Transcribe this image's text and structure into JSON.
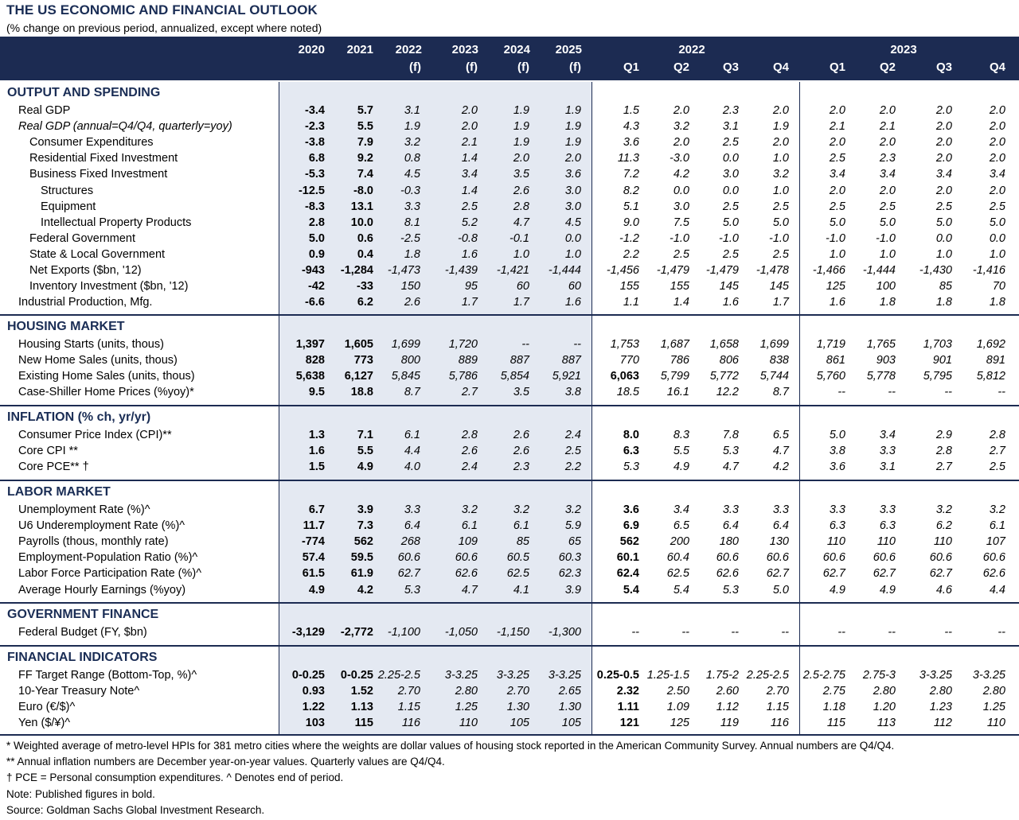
{
  "title": "THE US ECONOMIC AND FINANCIAL OUTLOOK",
  "subtitle": "(% change on previous period, annualized, except where noted)",
  "header": {
    "annual": [
      {
        "top": "2020",
        "bottom": ""
      },
      {
        "top": "2021",
        "bottom": ""
      },
      {
        "top": "2022",
        "bottom": "(f)"
      },
      {
        "top": "2023",
        "bottom": "(f)"
      },
      {
        "top": "2024",
        "bottom": "(f)"
      },
      {
        "top": "2025",
        "bottom": "(f)"
      }
    ],
    "year_groups": [
      "2022",
      "2023"
    ],
    "quarters": [
      "Q1",
      "Q2",
      "Q3",
      "Q4",
      "Q1",
      "Q2",
      "Q3",
      "Q4"
    ]
  },
  "sections": [
    {
      "name": "OUTPUT AND SPENDING",
      "rows": [
        {
          "label": "Real GDP",
          "indent": 1,
          "values": [
            "-3.4",
            "5.7",
            "3.1",
            "2.0",
            "1.9",
            "1.9",
            "1.5",
            "2.0",
            "2.3",
            "2.0",
            "2.0",
            "2.0",
            "2.0",
            "2.0"
          ],
          "bold": 2
        },
        {
          "label": "Real GDP (annual=Q4/Q4, quarterly=yoy)",
          "indent": 1,
          "italic": true,
          "values": [
            "-2.3",
            "5.5",
            "1.9",
            "2.0",
            "1.9",
            "1.9",
            "4.3",
            "3.2",
            "3.1",
            "1.9",
            "2.1",
            "2.1",
            "2.0",
            "2.0"
          ],
          "bold": 2
        },
        {
          "label": "Consumer Expenditures",
          "indent": 2,
          "values": [
            "-3.8",
            "7.9",
            "3.2",
            "2.1",
            "1.9",
            "1.9",
            "3.6",
            "2.0",
            "2.5",
            "2.0",
            "2.0",
            "2.0",
            "2.0",
            "2.0"
          ],
          "bold": 2
        },
        {
          "label": "Residential Fixed Investment",
          "indent": 2,
          "values": [
            "6.8",
            "9.2",
            "0.8",
            "1.4",
            "2.0",
            "2.0",
            "11.3",
            "-3.0",
            "0.0",
            "1.0",
            "2.5",
            "2.3",
            "2.0",
            "2.0"
          ],
          "bold": 2
        },
        {
          "label": "Business Fixed Investment",
          "indent": 2,
          "values": [
            "-5.3",
            "7.4",
            "4.5",
            "3.4",
            "3.5",
            "3.6",
            "7.2",
            "4.2",
            "3.0",
            "3.2",
            "3.4",
            "3.4",
            "3.4",
            "3.4"
          ],
          "bold": 2
        },
        {
          "label": "Structures",
          "indent": 3,
          "values": [
            "-12.5",
            "-8.0",
            "-0.3",
            "1.4",
            "2.6",
            "3.0",
            "8.2",
            "0.0",
            "0.0",
            "1.0",
            "2.0",
            "2.0",
            "2.0",
            "2.0"
          ],
          "bold": 2
        },
        {
          "label": "Equipment",
          "indent": 3,
          "values": [
            "-8.3",
            "13.1",
            "3.3",
            "2.5",
            "2.8",
            "3.0",
            "5.1",
            "3.0",
            "2.5",
            "2.5",
            "2.5",
            "2.5",
            "2.5",
            "2.5"
          ],
          "bold": 2
        },
        {
          "label": "Intellectual Property Products",
          "indent": 3,
          "values": [
            "2.8",
            "10.0",
            "8.1",
            "5.2",
            "4.7",
            "4.5",
            "9.0",
            "7.5",
            "5.0",
            "5.0",
            "5.0",
            "5.0",
            "5.0",
            "5.0"
          ],
          "bold": 2
        },
        {
          "label": "Federal Government",
          "indent": 2,
          "values": [
            "5.0",
            "0.6",
            "-2.5",
            "-0.8",
            "-0.1",
            "0.0",
            "-1.2",
            "-1.0",
            "-1.0",
            "-1.0",
            "-1.0",
            "-1.0",
            "0.0",
            "0.0"
          ],
          "bold": 2
        },
        {
          "label": "State & Local Government",
          "indent": 2,
          "values": [
            "0.9",
            "0.4",
            "1.8",
            "1.6",
            "1.0",
            "1.0",
            "2.2",
            "2.5",
            "2.5",
            "2.5",
            "1.0",
            "1.0",
            "1.0",
            "1.0"
          ],
          "bold": 2
        },
        {
          "label": "Net Exports ($bn, '12)",
          "indent": 2,
          "values": [
            "-943",
            "-1,284",
            "-1,473",
            "-1,439",
            "-1,421",
            "-1,444",
            "-1,456",
            "-1,479",
            "-1,479",
            "-1,478",
            "-1,466",
            "-1,444",
            "-1,430",
            "-1,416"
          ],
          "bold": 2
        },
        {
          "label": "Inventory Investment ($bn, '12)",
          "indent": 2,
          "values": [
            "-42",
            "-33",
            "150",
            "95",
            "60",
            "60",
            "155",
            "155",
            "145",
            "145",
            "125",
            "100",
            "85",
            "70"
          ],
          "bold": 2
        },
        {
          "label": "Industrial Production, Mfg.",
          "indent": 1,
          "values": [
            "-6.6",
            "6.2",
            "2.6",
            "1.7",
            "1.7",
            "1.6",
            "1.1",
            "1.4",
            "1.6",
            "1.7",
            "1.6",
            "1.8",
            "1.8",
            "1.8"
          ],
          "bold": 2
        }
      ]
    },
    {
      "name": "HOUSING MARKET",
      "rows": [
        {
          "label": "Housing Starts (units, thous)",
          "indent": 1,
          "values": [
            "1,397",
            "1,605",
            "1,699",
            "1,720",
            "--",
            "--",
            "1,753",
            "1,687",
            "1,658",
            "1,699",
            "1,719",
            "1,765",
            "1,703",
            "1,692"
          ],
          "bold": 2
        },
        {
          "label": "New Home Sales (units, thous)",
          "indent": 1,
          "values": [
            "828",
            "773",
            "800",
            "889",
            "887",
            "887",
            "770",
            "786",
            "806",
            "838",
            "861",
            "903",
            "901",
            "891"
          ],
          "bold": 2
        },
        {
          "label": "Existing Home Sales (units, thous)",
          "indent": 1,
          "values": [
            "5,638",
            "6,127",
            "5,845",
            "5,786",
            "5,854",
            "5,921",
            "6,063",
            "5,799",
            "5,772",
            "5,744",
            "5,760",
            "5,778",
            "5,795",
            "5,812"
          ],
          "bold": 2,
          "bold_q1": true
        },
        {
          "label": "Case-Shiller Home Prices (%yoy)*",
          "indent": 1,
          "values": [
            "9.5",
            "18.8",
            "8.7",
            "2.7",
            "3.5",
            "3.8",
            "18.5",
            "16.1",
            "12.2",
            "8.7",
            "--",
            "--",
            "--",
            "--"
          ],
          "bold": 2
        }
      ]
    },
    {
      "name": "INFLATION (% ch, yr/yr)",
      "rows": [
        {
          "label": "Consumer Price Index (CPI)**",
          "indent": 1,
          "values": [
            "1.3",
            "7.1",
            "6.1",
            "2.8",
            "2.6",
            "2.4",
            "8.0",
            "8.3",
            "7.8",
            "6.5",
            "5.0",
            "3.4",
            "2.9",
            "2.8"
          ],
          "bold": 2,
          "bold_q1": true
        },
        {
          "label": "Core CPI **",
          "indent": 1,
          "values": [
            "1.6",
            "5.5",
            "4.4",
            "2.6",
            "2.6",
            "2.5",
            "6.3",
            "5.5",
            "5.3",
            "4.7",
            "3.8",
            "3.3",
            "2.8",
            "2.7"
          ],
          "bold": 2,
          "bold_q1": true
        },
        {
          "label": "Core PCE** †",
          "indent": 1,
          "values": [
            "1.5",
            "4.9",
            "4.0",
            "2.4",
            "2.3",
            "2.2",
            "5.3",
            "4.9",
            "4.7",
            "4.2",
            "3.6",
            "3.1",
            "2.7",
            "2.5"
          ],
          "bold": 2
        }
      ]
    },
    {
      "name": "LABOR MARKET",
      "rows": [
        {
          "label": "Unemployment Rate (%)^",
          "indent": 1,
          "values": [
            "6.7",
            "3.9",
            "3.3",
            "3.2",
            "3.2",
            "3.2",
            "3.6",
            "3.4",
            "3.3",
            "3.3",
            "3.3",
            "3.3",
            "3.2",
            "3.2"
          ],
          "bold": 2,
          "bold_q1": true
        },
        {
          "label": "U6 Underemployment Rate (%)^",
          "indent": 1,
          "values": [
            "11.7",
            "7.3",
            "6.4",
            "6.1",
            "6.1",
            "5.9",
            "6.9",
            "6.5",
            "6.4",
            "6.4",
            "6.3",
            "6.3",
            "6.2",
            "6.1"
          ],
          "bold": 2,
          "bold_q1": true
        },
        {
          "label": "Payrolls (thous, monthly rate)",
          "indent": 1,
          "values": [
            "-774",
            "562",
            "268",
            "109",
            "85",
            "65",
            "562",
            "200",
            "180",
            "130",
            "110",
            "110",
            "110",
            "107"
          ],
          "bold": 2,
          "bold_q1": true
        },
        {
          "label": "Employment-Population Ratio (%)^",
          "indent": 1,
          "values": [
            "57.4",
            "59.5",
            "60.6",
            "60.6",
            "60.5",
            "60.3",
            "60.1",
            "60.4",
            "60.6",
            "60.6",
            "60.6",
            "60.6",
            "60.6",
            "60.6"
          ],
          "bold": 2,
          "bold_q1": true
        },
        {
          "label": "Labor Force Participation Rate (%)^",
          "indent": 1,
          "values": [
            "61.5",
            "61.9",
            "62.7",
            "62.6",
            "62.5",
            "62.3",
            "62.4",
            "62.5",
            "62.6",
            "62.7",
            "62.7",
            "62.7",
            "62.7",
            "62.6"
          ],
          "bold": 2,
          "bold_q1": true
        },
        {
          "label": "Average Hourly Earnings (%yoy)",
          "indent": 1,
          "values": [
            "4.9",
            "4.2",
            "5.3",
            "4.7",
            "4.1",
            "3.9",
            "5.4",
            "5.4",
            "5.3",
            "5.0",
            "4.9",
            "4.9",
            "4.6",
            "4.4"
          ],
          "bold": 2,
          "bold_q1": true
        }
      ]
    },
    {
      "name": "GOVERNMENT FINANCE",
      "rows": [
        {
          "label": "Federal Budget (FY, $bn)",
          "indent": 1,
          "values": [
            "-3,129",
            "-2,772",
            "-1,100",
            "-1,050",
            "-1,150",
            "-1,300",
            "--",
            "--",
            "--",
            "--",
            "--",
            "--",
            "--",
            "--"
          ],
          "bold": 2
        }
      ]
    },
    {
      "name": "FINANCIAL INDICATORS",
      "rows": [
        {
          "label": "FF Target Range (Bottom-Top, %)^",
          "indent": 1,
          "values": [
            "0-0.25",
            "0-0.25",
            "2.25-2.5",
            "3-3.25",
            "3-3.25",
            "3-3.25",
            "0.25-0.5",
            "1.25-1.5",
            "1.75-2",
            "2.25-2.5",
            "2.5-2.75",
            "2.75-3",
            "3-3.25",
            "3-3.25"
          ],
          "bold": 2,
          "bold_q1": true
        },
        {
          "label": "10-Year Treasury Note^",
          "indent": 1,
          "values": [
            "0.93",
            "1.52",
            "2.70",
            "2.80",
            "2.70",
            "2.65",
            "2.32",
            "2.50",
            "2.60",
            "2.70",
            "2.75",
            "2.80",
            "2.80",
            "2.80"
          ],
          "bold": 2,
          "bold_q1": true
        },
        {
          "label": "Euro (€/$)^",
          "indent": 1,
          "values": [
            "1.22",
            "1.13",
            "1.15",
            "1.25",
            "1.30",
            "1.30",
            "1.11",
            "1.09",
            "1.12",
            "1.15",
            "1.18",
            "1.20",
            "1.23",
            "1.25"
          ],
          "bold": 2,
          "bold_q1": true
        },
        {
          "label": "Yen ($/¥)^",
          "indent": 1,
          "values": [
            "103",
            "115",
            "116",
            "110",
            "105",
            "105",
            "121",
            "125",
            "119",
            "116",
            "115",
            "113",
            "112",
            "110"
          ],
          "bold": 2,
          "bold_q1": true
        }
      ]
    }
  ],
  "footnotes": [
    "* Weighted average of metro-level HPIs for 381 metro cities where the weights are dollar values of housing stock reported in the American Community Survey. Annual numbers are Q4/Q4.",
    "** Annual inflation numbers are December year-on-year values. Quarterly values are Q4/Q4.",
    "† PCE = Personal consumption expenditures.  ^ Denotes end of period.",
    "Note: Published figures in bold.",
    "Source: Goldman Sachs Global Investment Research."
  ],
  "colors": {
    "header_bg": "#1c2b52",
    "section_title": "#1a2d55",
    "annual_band": "#e4e9f2"
  }
}
